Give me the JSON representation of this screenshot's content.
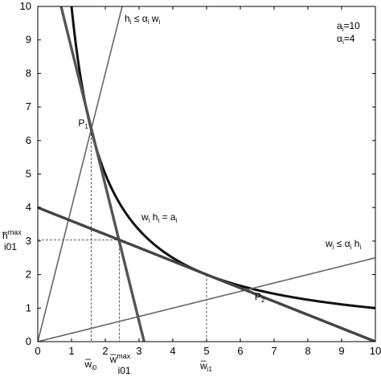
{
  "chart_data": {
    "type": "line",
    "xlim": [
      0,
      10
    ],
    "ylim": [
      0,
      10
    ],
    "xticks": [
      "0",
      "1",
      "2",
      "3",
      "4",
      "5",
      "6",
      "7",
      "8",
      "9",
      "10"
    ],
    "yticks": [
      "0",
      "1",
      "2",
      "3",
      "4",
      "5",
      "6",
      "7",
      "8",
      "9",
      "10"
    ],
    "grid": false,
    "series": [
      {
        "function": "h = a/w",
        "a": 10,
        "x_from": 1.0,
        "x_to": 10,
        "color": "#111111"
      },
      {
        "function": "h = 4*w",
        "x_from": 0,
        "x_to": 2.5,
        "color": "#666666"
      },
      {
        "function": "h = w/4",
        "x_from": 0,
        "x_to": 10,
        "color": "#666666"
      },
      {
        "x": [
          0.69,
          3.15
        ],
        "y": [
          10,
          0
        ],
        "color": "#555555"
      },
      {
        "x": [
          0,
          10
        ],
        "y": [
          4,
          0
        ],
        "color": "#444444"
      }
    ],
    "points": [
      {
        "name": "P",
        "sub": "1",
        "x": 1.58,
        "y": 6.33
      },
      {
        "name": "P",
        "sub": "2",
        "x": 6.33,
        "y": 1.58
      }
    ],
    "guides": [
      {
        "x": 1.58,
        "y": 6.33,
        "to": "x-axis"
      },
      {
        "x": 2.42,
        "y": 3.03,
        "to": "both"
      },
      {
        "x": 5.0,
        "y": 2.0,
        "to": "x-axis"
      }
    ],
    "annotations": {
      "params": [
        "a_i=10",
        "α_i=4"
      ],
      "upper_constraint": "h_i ≤ α_i w_i",
      "curve_label": "w_i h_i = a_i",
      "lower_constraint": "w_i ≤ α_i h_i"
    },
    "marker_labels": {
      "h_max": "h_i01^max",
      "w_i0": "w_i0",
      "w_max": "w_i01^max",
      "w_i1": "w_i1"
    }
  }
}
